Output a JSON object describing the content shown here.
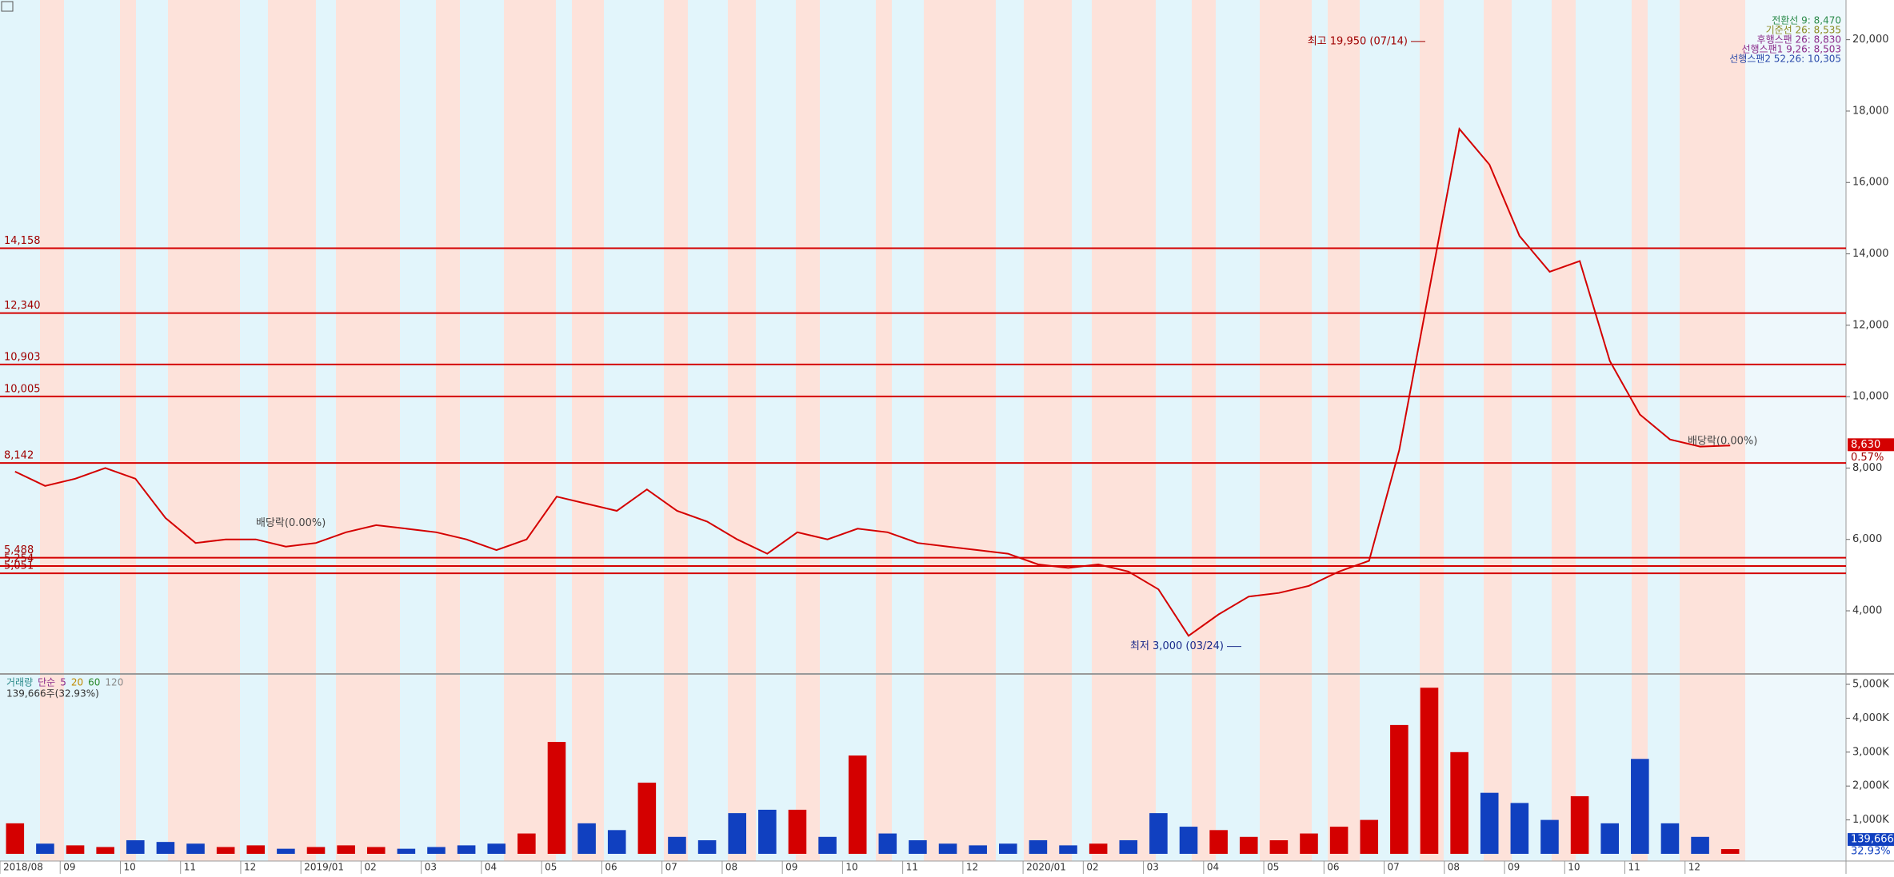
{
  "chart_data": {
    "type": "line",
    "categories": [
      "2018/08",
      null,
      "09",
      null,
      "10",
      null,
      "11",
      null,
      "12",
      null,
      "2019/01",
      null,
      "02",
      null,
      "03",
      null,
      "04",
      null,
      "05",
      null,
      "06",
      null,
      "07",
      null,
      "08",
      null,
      "09",
      null,
      "10",
      null,
      "11",
      null,
      "12",
      null,
      "2020/01",
      null,
      "02",
      null,
      "03",
      null,
      "04",
      null,
      "05",
      null,
      "06",
      null,
      "07",
      null,
      "08",
      null,
      "09",
      null,
      "10",
      null,
      "11",
      null,
      "12",
      null
    ],
    "values": [
      7900,
      7500,
      7700,
      8000,
      7700,
      6600,
      5900,
      6000,
      6000,
      5800,
      5900,
      6200,
      6400,
      6300,
      6200,
      6000,
      5700,
      6000,
      7200,
      7000,
      6800,
      7400,
      6800,
      6500,
      6000,
      5600,
      6200,
      6000,
      6300,
      6200,
      5900,
      5800,
      5700,
      5600,
      5300,
      5200,
      5300,
      5100,
      4600,
      3300,
      3900,
      4400,
      4500,
      4700,
      5100,
      5400,
      8500,
      13000,
      17500,
      16500,
      14500,
      13500,
      13800,
      11000,
      9500,
      8800,
      8600,
      8630
    ],
    "color": "#d40000",
    "ylim": [
      2500,
      21000
    ],
    "yticks": [
      {
        "value": 4000,
        "label": "4,000"
      },
      {
        "value": 6000,
        "label": "6,000"
      },
      {
        "value": 8000,
        "label": "8,000"
      },
      {
        "value": 10000,
        "label": "10,000"
      },
      {
        "value": 12000,
        "label": "12,000"
      },
      {
        "value": 14000,
        "label": "14,000"
      },
      {
        "value": 16000,
        "label": "16,000"
      },
      {
        "value": 18000,
        "label": "18,000"
      },
      {
        "value": 20000,
        "label": "20,000"
      }
    ],
    "hlines": [
      {
        "value": 14158,
        "label": "14,158"
      },
      {
        "value": 12340,
        "label": "12,340"
      },
      {
        "value": 10903,
        "label": "10,903"
      },
      {
        "value": 10005,
        "label": "10,005"
      },
      {
        "value": 8142,
        "label": "8,142"
      },
      {
        "value": 5488,
        "label": "5,488"
      },
      {
        "value": 5254,
        "label": "5,254"
      },
      {
        "value": 5051,
        "label": "5,051"
      }
    ],
    "annotations": [
      {
        "value": 19950,
        "label": "최고 19,950 (07/14)"
      },
      {
        "value": 3000,
        "label": "최저 3,000 (03/24)"
      }
    ],
    "events": [
      "배당락(0.00%)",
      "배당락(0.00%)"
    ],
    "legend": [
      "전환선 9: 8,470",
      "기준선 26: 8,535",
      "후행스팬 26: 8,830",
      "선행스팬1 9,26: 8,503",
      "선행스팬2 52,26: 10,305"
    ],
    "legend_colors": [
      "#2a8a4a",
      "#8a8a20",
      "#8a2a8a",
      "#8a2a8a",
      "#2a4aaa"
    ],
    "last_label": "8,630",
    "change": "0.57%",
    "volume": {
      "values": [
        900000,
        300000,
        250000,
        200000,
        400000,
        350000,
        300000,
        200000,
        250000,
        150000,
        200000,
        250000,
        200000,
        150000,
        200000,
        250000,
        300000,
        600000,
        3300000,
        900000,
        700000,
        2100000,
        500000,
        400000,
        1200000,
        1300000,
        1300000,
        500000,
        2900000,
        600000,
        400000,
        300000,
        250000,
        300000,
        400000,
        250000,
        300000,
        400000,
        1200000,
        800000,
        700000,
        500000,
        400000,
        600000,
        800000,
        1000000,
        3800000,
        4900000,
        3000000,
        1800000,
        1500000,
        1000000,
        1700000,
        900000,
        2800000,
        900000,
        500000,
        139666
      ],
      "up_color": "#d40000",
      "down_color": "#1040c0",
      "ylim": [
        0,
        5000000
      ],
      "yticks": [
        {
          "value": 1000000,
          "label": "1,000K"
        },
        {
          "value": 2000000,
          "label": "2,000K"
        },
        {
          "value": 3000000,
          "label": "3,000K"
        },
        {
          "value": 4000000,
          "label": "4,000K"
        },
        {
          "value": 5000000,
          "label": "5,000K"
        }
      ],
      "legend": [
        "거래량",
        "단순",
        "5",
        "20",
        "60",
        "120"
      ],
      "legend_colors": [
        "#2a8a8a",
        "#8a2a8a",
        "#8a2a8a",
        "#c08a00",
        "#2a8a2a",
        "#8a8a8a"
      ],
      "summary": "139,666주(32.93%)",
      "last_label": "139,666",
      "last_pct": "32.93%"
    }
  }
}
